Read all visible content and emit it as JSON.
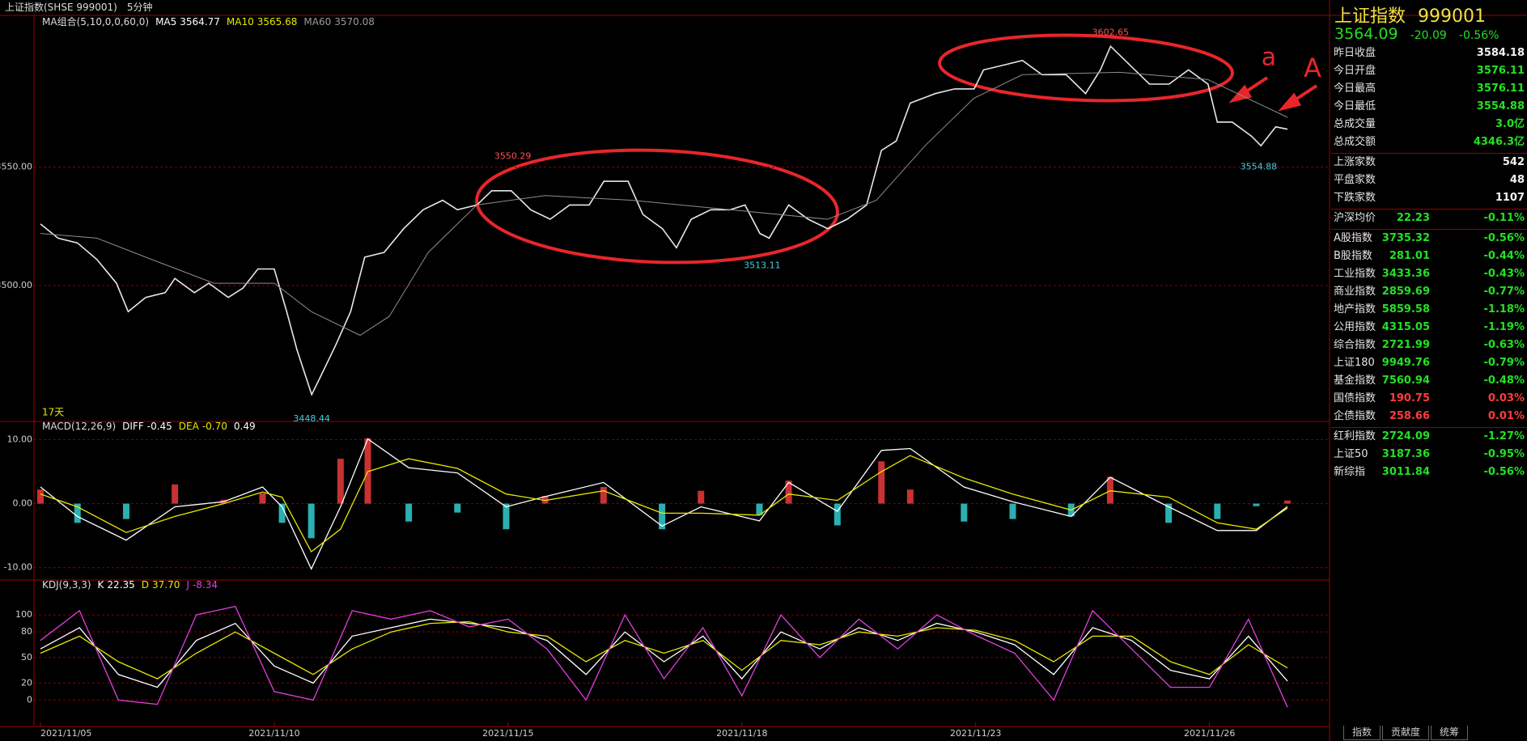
{
  "header": {
    "title": "上证指数(SHSE 999001)",
    "period": "5分钟"
  },
  "time_axis": {
    "xlim": [
      0,
      16.54
    ],
    "xticks": [
      {
        "value": 0,
        "label": "2021/11/05"
      },
      {
        "value": 3,
        "label": "2021/11/10"
      },
      {
        "value": 6,
        "label": "2021/11/15"
      },
      {
        "value": 9,
        "label": "2021/11/18"
      },
      {
        "value": 12,
        "label": "2021/11/23"
      },
      {
        "value": 15,
        "label": "2021/11/26"
      }
    ]
  },
  "price_panel": {
    "type": "line",
    "legend_title": "MA组合(5,10,0,0,60,0)",
    "legend": [
      {
        "name": "MA5",
        "value": "3564.77",
        "color": "#ffffff"
      },
      {
        "name": "MA10",
        "value": "3565.68",
        "color": "#e8e800"
      },
      {
        "name": "MA60",
        "value": "3570.08",
        "color": "#9a9a9a"
      }
    ],
    "days_label": "17天",
    "ylim": [
      3443,
      3613
    ],
    "yticks": [
      {
        "value": 3500,
        "label": "3500.00"
      },
      {
        "value": 3550,
        "label": "3550.00"
      }
    ],
    "grid": true,
    "series": [
      {
        "color": "#e8e8e8",
        "x": [
          0,
          0.225,
          0.475,
          0.725,
          0.975,
          1.125,
          1.35,
          1.6,
          1.725,
          1.975,
          2.16,
          2.41,
          2.6,
          2.79,
          3.0,
          3.16,
          3.29,
          3.48,
          3.6,
          3.79,
          3.98,
          4.16,
          4.41,
          4.66,
          4.91,
          5.16,
          5.35,
          5.6,
          5.79,
          6.04,
          6.29,
          6.54,
          6.79,
          7.04,
          7.23,
          7.54,
          7.73,
          7.98,
          8.16,
          8.35,
          8.6,
          8.85,
          9.04,
          9.23,
          9.35,
          9.6,
          9.85,
          10.1,
          10.35,
          10.6,
          10.79,
          10.98,
          11.16,
          11.48,
          11.73,
          11.98,
          12.1,
          12.35,
          12.6,
          12.85,
          13.16,
          13.41,
          13.6,
          13.73,
          13.98,
          14.23,
          14.48,
          14.73,
          14.98,
          15.1,
          15.29,
          15.54,
          15.66,
          15.85,
          16.0
        ],
        "values": [
          3526,
          3520,
          3518,
          3511,
          3501,
          3489,
          3495,
          3497,
          3503,
          3497,
          3501,
          3495,
          3499,
          3507,
          3507,
          3489,
          3473,
          3454,
          3462,
          3475,
          3489,
          3512,
          3514,
          3524,
          3532,
          3536,
          3532,
          3534,
          3540,
          3540,
          3532,
          3528,
          3534,
          3534,
          3544,
          3544,
          3530,
          3524,
          3516,
          3528,
          3532,
          3532,
          3534,
          3522,
          3520,
          3534,
          3528,
          3524,
          3528,
          3534,
          3557,
          3561,
          3577,
          3581,
          3583,
          3583,
          3591,
          3593,
          3595,
          3589,
          3589,
          3581,
          3591,
          3601,
          3593,
          3585,
          3585,
          3591,
          3585,
          3569,
          3569,
          3563,
          3559,
          3567,
          3566
        ]
      },
      {
        "name": "MA60",
        "color": "#8c8c8c",
        "x": [
          0,
          0.725,
          1.35,
          2.225,
          3.0,
          3.475,
          4.1,
          4.475,
          4.975,
          5.6,
          6.475,
          7.6,
          8.85,
          10.1,
          10.725,
          11.35,
          11.975,
          12.6,
          13.85,
          14.975,
          16.0
        ],
        "values": [
          3522,
          3520,
          3512,
          3501,
          3501,
          3489,
          3479,
          3487,
          3514,
          3534,
          3538,
          3536,
          3532,
          3528,
          3536,
          3559,
          3579,
          3589,
          3590,
          3587,
          3571
        ]
      }
    ],
    "annotations": [
      {
        "x": 6.06,
        "value": 3550.29,
        "color": "#ff5050",
        "position": "above"
      },
      {
        "x": 3.48,
        "value": 3448.44,
        "color": "#40d0e0",
        "position": "below"
      },
      {
        "x": 9.26,
        "value": 3513.11,
        "color": "#40d0e0",
        "position": "below"
      },
      {
        "x": 13.73,
        "value": 3602.65,
        "color": "#ff5050",
        "position": "above"
      },
      {
        "x": 15.63,
        "value": 3554.88,
        "color": "#40d0e0",
        "position": "below"
      }
    ],
    "hand_notes": [
      "a",
      "A"
    ]
  },
  "macd_panel": {
    "type": "macd",
    "legend_title": "MACD(12,26,9)",
    "legend": [
      {
        "name": "DIFF",
        "value": "-0.45",
        "color": "#ffffff"
      },
      {
        "name": "DEA",
        "value": "-0.70",
        "color": "#e8e800"
      },
      {
        "value": "0.49",
        "color": "#ffffff"
      }
    ],
    "ylim": [
      -11.8,
      12.7
    ],
    "yticks": [
      {
        "value": -10,
        "label": "-10.00"
      },
      {
        "value": 0,
        "label": "0.00"
      },
      {
        "value": 10,
        "label": "10.00"
      }
    ],
    "grid": true,
    "x": [
      0,
      0.475,
      1.1,
      1.725,
      2.35,
      2.85,
      3.1,
      3.475,
      3.85,
      4.2,
      4.725,
      5.35,
      5.975,
      6.475,
      7.225,
      7.975,
      8.475,
      9.225,
      9.6,
      10.225,
      10.79,
      11.16,
      11.85,
      12.475,
      13.225,
      13.725,
      14.475,
      15.1,
      15.6,
      16.0
    ],
    "up_color": "#c83232",
    "down_color": "#2ab0b0",
    "bars": [
      2.2,
      -3.0,
      -2.4,
      3.0,
      0.6,
      1.6,
      -3.0,
      -5.4,
      7.0,
      10.2,
      -2.8,
      -1.4,
      -4.0,
      1.2,
      2.6,
      -4.0,
      2.0,
      -1.8,
      3.6,
      -3.4,
      6.6,
      2.2,
      -2.8,
      -2.4,
      -2.0,
      4.2,
      -3.0,
      -2.4,
      -0.4,
      0.49
    ],
    "series": [
      {
        "name": "DIFF",
        "color": "#ffffff",
        "values": [
          2.6,
          -2.0,
          -5.7,
          -0.5,
          0.3,
          2.6,
          -0.5,
          -10.2,
          -0.5,
          10.1,
          5.6,
          4.8,
          -0.5,
          1.1,
          3.3,
          -3.5,
          -0.5,
          -2.7,
          3.3,
          -1.2,
          8.3,
          8.6,
          2.6,
          0.3,
          -2.0,
          4.1,
          -0.5,
          -4.2,
          -4.2,
          -0.45
        ]
      },
      {
        "name": "DEA",
        "color": "#e8e800",
        "values": [
          1.5,
          -0.5,
          -4.5,
          -2.0,
          0,
          1.8,
          1.0,
          -7.5,
          -4.0,
          5.0,
          7.0,
          5.5,
          1.5,
          0.5,
          2.0,
          -1.5,
          -1.5,
          -1.8,
          1.5,
          0.5,
          5.0,
          7.5,
          4.0,
          1.5,
          -1.0,
          2.0,
          1.0,
          -3.0,
          -4.0,
          -0.7
        ]
      }
    ]
  },
  "kdj_panel": {
    "type": "line",
    "legend_title": "KDJ(9,3,3)",
    "legend": [
      {
        "name": "K",
        "value": "22.35",
        "color": "#ffffff"
      },
      {
        "name": "D",
        "value": "37.70",
        "color": "#e8e800"
      },
      {
        "name": "J",
        "value": "-8.34",
        "color": "#e040e0"
      }
    ],
    "ylim": [
      -30,
      140
    ],
    "yticks": [
      0,
      20,
      50,
      80,
      100
    ],
    "grid": true,
    "x": [
      0,
      0.5,
      1,
      1.5,
      2,
      2.5,
      3,
      3.5,
      4,
      4.5,
      5,
      5.5,
      6,
      6.5,
      7,
      7.5,
      8,
      8.5,
      9,
      9.5,
      10,
      10.5,
      11,
      11.5,
      12,
      12.5,
      13,
      13.5,
      14,
      14.5,
      15,
      15.5,
      16
    ],
    "series": [
      {
        "name": "K",
        "color": "#ffffff",
        "values": [
          60,
          85,
          30,
          15,
          70,
          90,
          40,
          20,
          75,
          85,
          95,
          90,
          85,
          70,
          30,
          80,
          45,
          75,
          25,
          80,
          60,
          85,
          70,
          90,
          80,
          65,
          30,
          85,
          70,
          35,
          25,
          75,
          22.35
        ]
      },
      {
        "name": "D",
        "color": "#e8e800",
        "values": [
          55,
          75,
          45,
          25,
          55,
          80,
          55,
          30,
          60,
          80,
          90,
          92,
          80,
          75,
          45,
          70,
          55,
          70,
          35,
          70,
          65,
          80,
          75,
          85,
          82,
          70,
          45,
          75,
          75,
          45,
          30,
          65,
          37.7
        ]
      },
      {
        "name": "J",
        "color": "#e040e0",
        "values": [
          70,
          105,
          0,
          -5,
          100,
          110,
          10,
          0,
          105,
          95,
          105,
          86,
          95,
          60,
          0,
          100,
          25,
          85,
          5,
          100,
          50,
          95,
          60,
          100,
          76,
          55,
          0,
          105,
          60,
          15,
          15,
          95,
          -8.34
        ]
      }
    ]
  },
  "quote": {
    "name": "上证指数",
    "code": "999001",
    "price": "3564.09",
    "change": "-20.09",
    "pct": "-0.56%"
  },
  "side_groups": [
    [
      {
        "label": "昨日收盘",
        "value": "3584.18",
        "color": "white"
      },
      {
        "label": "今日开盘",
        "value": "3576.11",
        "color": "green"
      },
      {
        "label": "今日最高",
        "value": "3576.11",
        "color": "green"
      },
      {
        "label": "今日最低",
        "value": "3554.88",
        "color": "green"
      },
      {
        "label": "总成交量",
        "value": "3.0亿",
        "color": "green"
      },
      {
        "label": "总成交额",
        "value": "4346.3亿",
        "color": "green"
      }
    ],
    [
      {
        "label": "上涨家数",
        "value": "542",
        "color": "white"
      },
      {
        "label": "平盘家数",
        "value": "48",
        "color": "white"
      },
      {
        "label": "下跌家数",
        "value": "1107",
        "color": "white"
      }
    ],
    [
      {
        "label": "沪深均价",
        "value": "22.23",
        "change": "-0.11%",
        "color": "green"
      }
    ],
    [
      {
        "label": "A股指数",
        "value": "3735.32",
        "change": "-0.56%",
        "color": "green"
      },
      {
        "label": "B股指数",
        "value": "281.01",
        "change": "-0.44%",
        "color": "green"
      },
      {
        "label": "工业指数",
        "value": "3433.36",
        "change": "-0.43%",
        "color": "green"
      },
      {
        "label": "商业指数",
        "value": "2859.69",
        "change": "-0.77%",
        "color": "green"
      },
      {
        "label": "地产指数",
        "value": "5859.58",
        "change": "-1.18%",
        "color": "green"
      },
      {
        "label": "公用指数",
        "value": "4315.05",
        "change": "-1.19%",
        "color": "green"
      },
      {
        "label": "综合指数",
        "value": "2721.99",
        "change": "-0.63%",
        "color": "green"
      },
      {
        "label": "上证180",
        "value": "9949.76",
        "change": "-0.79%",
        "color": "green"
      },
      {
        "label": "基金指数",
        "value": "7560.94",
        "change": "-0.48%",
        "color": "green"
      },
      {
        "label": "国债指数",
        "value": "190.75",
        "change": "0.03%",
        "color": "red"
      },
      {
        "label": "企债指数",
        "value": "258.66",
        "change": "0.01%",
        "color": "red"
      }
    ],
    [
      {
        "label": "红利指数",
        "value": "2724.09",
        "change": "-1.27%",
        "color": "green"
      },
      {
        "label": "上证50",
        "value": "3187.36",
        "change": "-0.95%",
        "color": "green"
      },
      {
        "label": "新综指",
        "value": "3011.84",
        "change": "-0.56%",
        "color": "green"
      }
    ]
  ],
  "tabs": [
    "指数",
    "贡献度",
    "统筹"
  ]
}
